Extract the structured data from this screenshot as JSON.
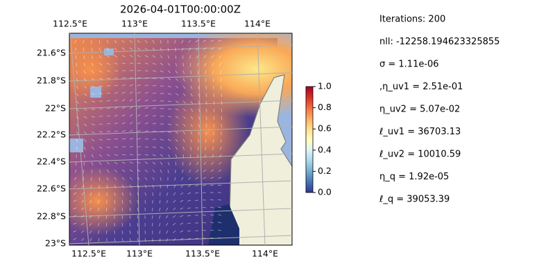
{
  "map": {
    "title": "2026-04-01T00:00:00Z",
    "lon_labels_top": [
      "112.5°E",
      "113°E",
      "113.5°E",
      "114°E"
    ],
    "lon_labels_bottom": [
      "112.5°E",
      "113°E",
      "113.5°E",
      "114°E"
    ],
    "lat_labels": [
      "21.6°S",
      "21.8°S",
      "22°S",
      "22.2°S",
      "22.4°S",
      "22.6°S",
      "22.8°S",
      "23°S"
    ],
    "colorbar": {
      "lim": [
        0,
        1
      ],
      "ticks": [
        {
          "value": 0,
          "label": "0.0"
        },
        0.2,
        0.4,
        0.6,
        0.8,
        {
          "value": 1,
          "label": "1.0"
        }
      ]
    },
    "info": [
      "Iterations: 200",
      "nll: -12258.194623325855",
      "σ = 1.11e-06",
      ",η_uv1 = 2.51e-01",
      "η_uv2 = 5.07e-02",
      "ℓ_uv1 = 36703.13",
      "ℓ_uv2 = 10010.59",
      "η_q = 1.92e-05",
      "ℓ_q = 39053.39"
    ]
  }
}
